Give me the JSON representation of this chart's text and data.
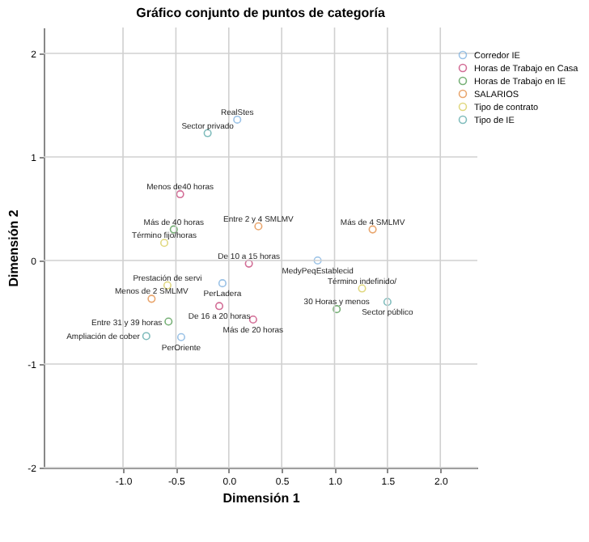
{
  "chart_data": {
    "type": "scatter",
    "title": "Gráfico conjunto de puntos de categoría",
    "xlabel": "Dimensión 1",
    "ylabel": "Dimensión 2",
    "series": [
      {
        "name": "Corredor IE",
        "color": "#6fa8dc",
        "x": [
          0.08,
          0.84,
          -0.06,
          -0.45
        ],
        "values": [
          1.36,
          0.0,
          -0.22,
          -0.74
        ]
      },
      {
        "name": "Horas de Trabajo en Casa",
        "color": "#c0306a",
        "x": [
          -0.46,
          0.19,
          -0.09,
          0.23
        ],
        "values": [
          0.64,
          -0.03,
          -0.44,
          -0.57
        ]
      },
      {
        "name": "Horas de Trabajo en IE",
        "color": "#3d8f3d",
        "x": [
          -0.52,
          -0.57,
          1.02
        ],
        "values": [
          0.3,
          -0.59,
          -0.47
        ]
      },
      {
        "name": "SALARIOS",
        "color": "#e08030",
        "x": [
          0.28,
          1.36,
          -0.73
        ],
        "values": [
          0.33,
          0.3,
          -0.37
        ]
      },
      {
        "name": "Tipo de contrato",
        "color": "#d4c84a",
        "x": [
          -0.61,
          -0.58,
          1.26
        ],
        "values": [
          0.17,
          -0.24,
          -0.27
        ]
      },
      {
        "name": "Tipo de IE",
        "color": "#4aa0a0",
        "x": [
          -0.2,
          -0.78,
          1.5
        ],
        "values": [
          1.23,
          -0.73,
          -0.4
        ]
      }
    ],
    "annotations": [
      {
        "text": "RealStes",
        "x": 0.08,
        "y": 1.36
      },
      {
        "text": "Sector privado",
        "x": -0.2,
        "y": 1.23
      },
      {
        "text": "Menos de40 horas",
        "x": -0.46,
        "y": 0.64
      },
      {
        "text": "Más de 40 horas",
        "x": -0.52,
        "y": 0.3
      },
      {
        "text": "Término fijo/horas",
        "x": -0.61,
        "y": 0.17
      },
      {
        "text": "Entre 2 y 4 SMLMV",
        "x": 0.28,
        "y": 0.33
      },
      {
        "text": "Más de 4 SMLMV",
        "x": 1.36,
        "y": 0.3
      },
      {
        "text": "De 10 a 15 horas",
        "x": 0.19,
        "y": -0.03
      },
      {
        "text": "MedyPeqEstablecid",
        "x": 0.84,
        "y": 0.0
      },
      {
        "text": "Prestación de servi",
        "x": -0.58,
        "y": -0.24
      },
      {
        "text": "PerLadera",
        "x": -0.06,
        "y": -0.22
      },
      {
        "text": "Menos de 2 SMLMV",
        "x": -0.73,
        "y": -0.37
      },
      {
        "text": "De 16 a 20 horas",
        "x": -0.09,
        "y": -0.44
      },
      {
        "text": "Más de 20 horas",
        "x": 0.23,
        "y": -0.57
      },
      {
        "text": "Entre 31 y 39 horas",
        "x": -0.57,
        "y": -0.59
      },
      {
        "text": "PerOriente",
        "x": -0.45,
        "y": -0.74
      },
      {
        "text": "Ampliación de cober",
        "x": -0.78,
        "y": -0.73
      },
      {
        "text": "Término indefinido/",
        "x": 1.26,
        "y": -0.27
      },
      {
        "text": "30 Horas y menos",
        "x": 1.02,
        "y": -0.47
      },
      {
        "text": "Sector público",
        "x": 1.5,
        "y": -0.4
      }
    ],
    "xlim": [
      -1.75,
      2.35
    ],
    "ylim": [
      -2,
      2.25
    ],
    "xticks": [
      {
        "value": -1,
        "label": "-1.0"
      },
      {
        "value": -0.5,
        "label": "-0.5"
      },
      {
        "value": 0,
        "label": "0.0"
      },
      {
        "value": 0.5,
        "label": "0.5"
      },
      {
        "value": 1,
        "label": "1.0"
      },
      {
        "value": 1.5,
        "label": "1.5"
      },
      {
        "value": 2,
        "label": "2.0"
      }
    ],
    "yticks": [
      -2,
      -1,
      0,
      1,
      2
    ],
    "grid": true,
    "legend": "top right",
    "marker": "circle"
  }
}
